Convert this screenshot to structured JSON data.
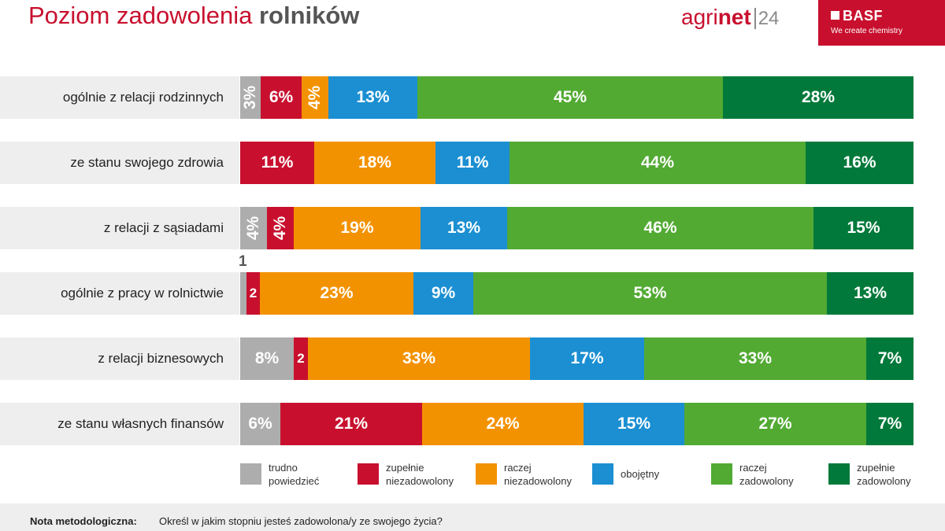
{
  "header": {
    "title_regular": "Poziom zadowolenia ",
    "title_bold": "rolników",
    "agrinet_a": "agri",
    "agrinet_b": "net",
    "agrinet_c": "24",
    "basf_logo": "BASF",
    "basf_tagline": "We create chemistry"
  },
  "colors": {
    "trudno": "#adadad",
    "zupelnie_niezadowolony": "#c8102e",
    "raczej_niezadowolony": "#f39200",
    "obojetny": "#1b8fd2",
    "raczej_zadowolony": "#52aa33",
    "zupelnie_zadowolony": "#00793a"
  },
  "chart_data": {
    "type": "bar",
    "orientation": "horizontal",
    "stacked": true,
    "categories": [
      "ogólnie z relacji rodzinnych",
      "ze stanu swojego zdrowia",
      "z relacji z sąsiadami",
      "ogólnie z pracy w rolnictwie",
      "z relacji biznesowych",
      "ze stanu własnych finansów"
    ],
    "series": [
      {
        "name": "trudno powiedzieć",
        "values": [
          3,
          0,
          4,
          1,
          8,
          6
        ],
        "labels": [
          "3%",
          "",
          "4%",
          "1",
          "8%",
          "6%"
        ]
      },
      {
        "name": "zupełnie niezadowolony",
        "values": [
          6,
          11,
          4,
          2,
          2,
          21
        ],
        "labels": [
          "6%",
          "11%",
          "4%",
          "2",
          "2",
          "21%"
        ]
      },
      {
        "name": "raczej niezadowolony",
        "values": [
          4,
          18,
          19,
          23,
          33,
          24
        ],
        "labels": [
          "4%",
          "18%",
          "19%",
          "23%",
          "33%",
          "24%"
        ]
      },
      {
        "name": "obojętny",
        "values": [
          13,
          11,
          13,
          9,
          17,
          15
        ],
        "labels": [
          "13%",
          "11%",
          "13%",
          "9%",
          "17%",
          "15%"
        ]
      },
      {
        "name": "raczej zadowolony",
        "values": [
          45,
          44,
          46,
          53,
          33,
          27
        ],
        "labels": [
          "45%",
          "44%",
          "46%",
          "53%",
          "33%",
          "27%"
        ]
      },
      {
        "name": "zupełnie zadowolony",
        "values": [
          28,
          16,
          15,
          13,
          7,
          7
        ],
        "labels": [
          "28%",
          "16%",
          "15%",
          "13%",
          "7%",
          "7%"
        ]
      }
    ],
    "legend": [
      {
        "line1": "trudno",
        "line2": "powiedzieć"
      },
      {
        "line1": "zupełnie",
        "line2": "niezadowolony"
      },
      {
        "line1": "raczej",
        "line2": "niezadowolony"
      },
      {
        "line1": "obojętny",
        "line2": ""
      },
      {
        "line1": "raczej",
        "line2": "zadowolony"
      },
      {
        "line1": "zupełnie",
        "line2": "zadowolony"
      }
    ],
    "legend_position": "bottom"
  },
  "footer": {
    "label": "Nota metodologiczna:",
    "text": "Określ w jakim stopniu jesteś zadowolona/y ze swojego życia?"
  }
}
